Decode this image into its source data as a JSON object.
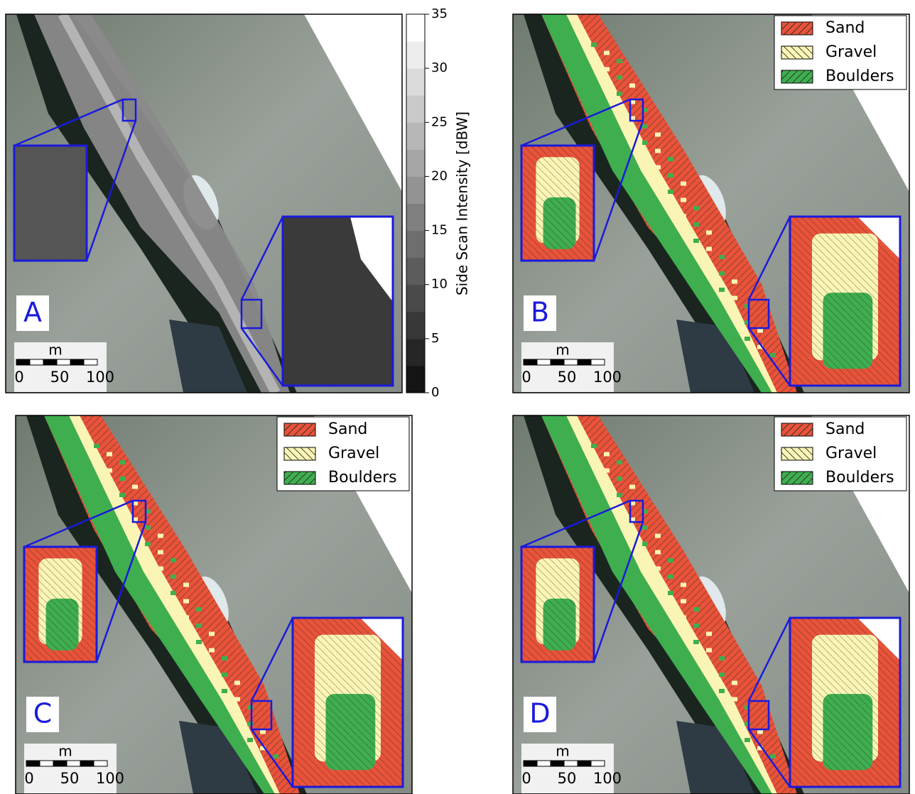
{
  "panels": [
    {
      "label": "A",
      "type": "intensity"
    },
    {
      "label": "B",
      "type": "classified"
    },
    {
      "label": "C",
      "type": "classified"
    },
    {
      "label": "D",
      "type": "classified"
    }
  ],
  "scale_bar": {
    "unit": "m",
    "labels": [
      0,
      50,
      100
    ]
  },
  "colorbar": {
    "label": "Side Scan Intensity [dBW]",
    "range": [
      0,
      35
    ],
    "ticks": [
      0,
      5,
      10,
      15,
      20,
      25,
      30,
      35
    ]
  },
  "legend": [
    {
      "name": "Sand",
      "color": "#e8533a"
    },
    {
      "name": "Gravel",
      "color": "#fbf5b5"
    },
    {
      "name": "Boulders",
      "color": "#3fae4f"
    }
  ]
}
